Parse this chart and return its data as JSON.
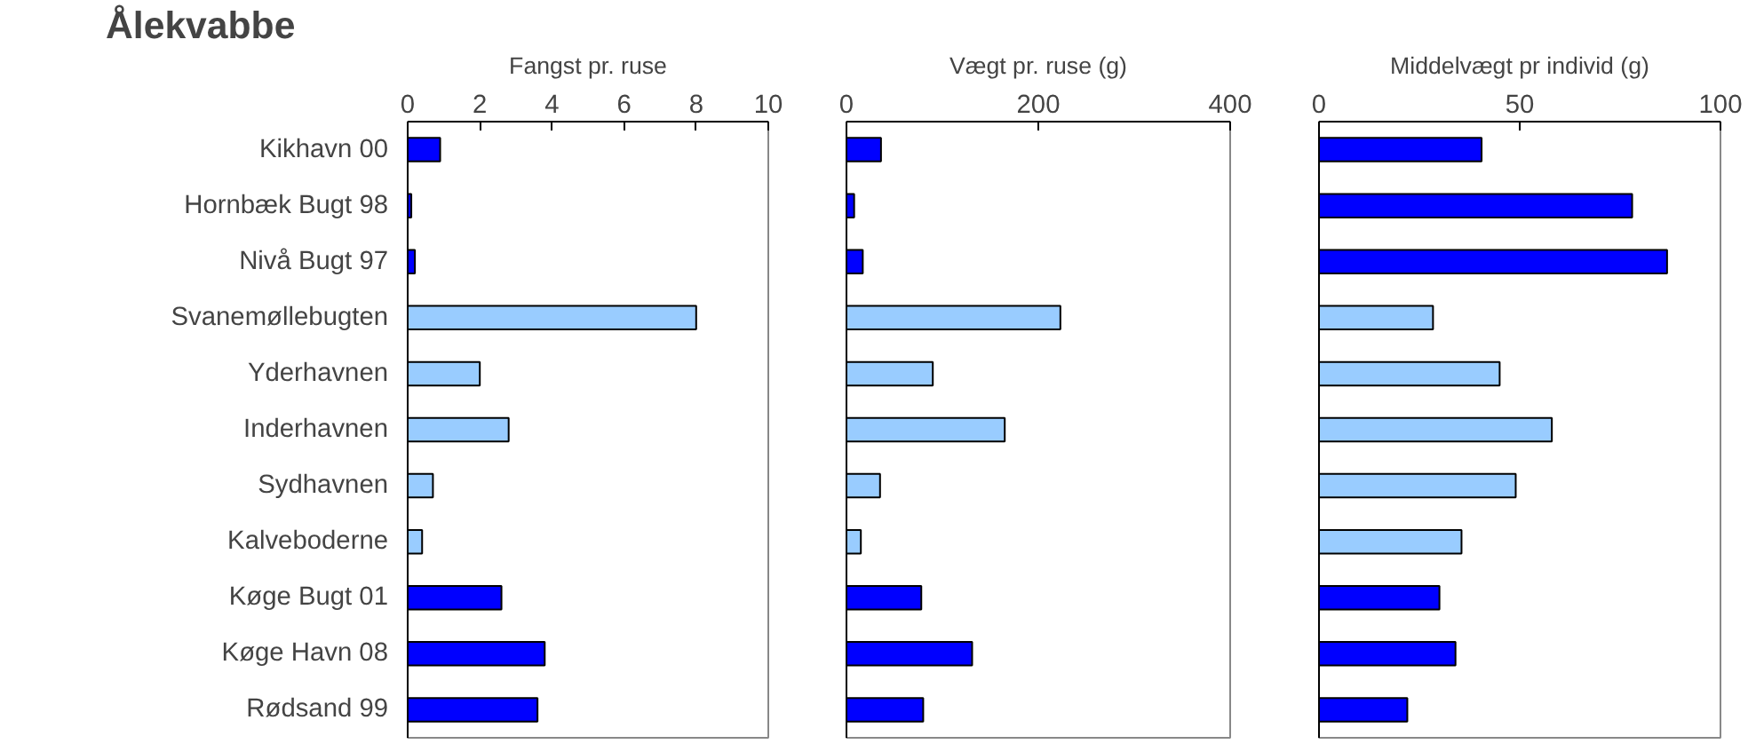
{
  "chart_data": [
    {
      "type": "bar",
      "orientation": "horizontal",
      "title": "Ålekvabbe",
      "xlabel": "Fangst pr. ruse",
      "categories": [
        "Kikhavn 00",
        "Hornbæk Bugt 98",
        "Nivå Bugt 97",
        "Svanemøllebugten",
        "Yderhavnen",
        "Inderhavnen",
        "Sydhavnen",
        "Kalveboderne",
        "Køge Bugt 01",
        "Køge Havn 08",
        "Rødsand 99"
      ],
      "values": [
        0.9,
        0.1,
        0.2,
        8.0,
        2.0,
        2.8,
        0.7,
        0.4,
        2.6,
        3.8,
        3.6
      ],
      "colors": [
        "#0000ff",
        "#0000ff",
        "#0000ff",
        "#99ccff",
        "#99ccff",
        "#99ccff",
        "#99ccff",
        "#99ccff",
        "#0000ff",
        "#0000ff",
        "#0000ff"
      ],
      "xlim": [
        0,
        10
      ],
      "xticks": [
        0,
        2,
        4,
        6,
        8,
        10
      ]
    },
    {
      "type": "bar",
      "orientation": "horizontal",
      "xlabel": "Vægt pr. ruse (g)",
      "tick_labels": "x",
      "categories": [
        null,
        null,
        null,
        null,
        null,
        null,
        null,
        null,
        null,
        null,
        null
      ],
      "values": [
        36,
        8,
        17,
        223,
        90,
        165,
        35,
        15,
        78,
        131,
        80
      ],
      "colors": [
        "#0000ff",
        "#0000ff",
        "#0000ff",
        "#99ccff",
        "#99ccff",
        "#99ccff",
        "#99ccff",
        "#99ccff",
        "#0000ff",
        "#0000ff",
        "#0000ff"
      ],
      "xlim": [
        0,
        400
      ],
      "xticks": [
        0,
        200,
        400
      ]
    },
    {
      "type": "bar",
      "orientation": "horizontal",
      "xlabel": "Middelvægt pr individ (g)",
      "tick_labels": "x",
      "categories": [
        null,
        null,
        null,
        null,
        null,
        null,
        null,
        null,
        null,
        null,
        null
      ],
      "values": [
        40.5,
        78,
        86.7,
        28.4,
        45,
        58,
        49,
        35.5,
        30,
        34,
        22
      ],
      "colors": [
        "#0000ff",
        "#0000ff",
        "#0000ff",
        "#99ccff",
        "#99ccff",
        "#99ccff",
        "#99ccff",
        "#99ccff",
        "#0000ff",
        "#0000ff",
        "#0000ff"
      ],
      "xlim": [
        0,
        100
      ],
      "xticks": [
        0,
        50,
        100
      ]
    }
  ]
}
